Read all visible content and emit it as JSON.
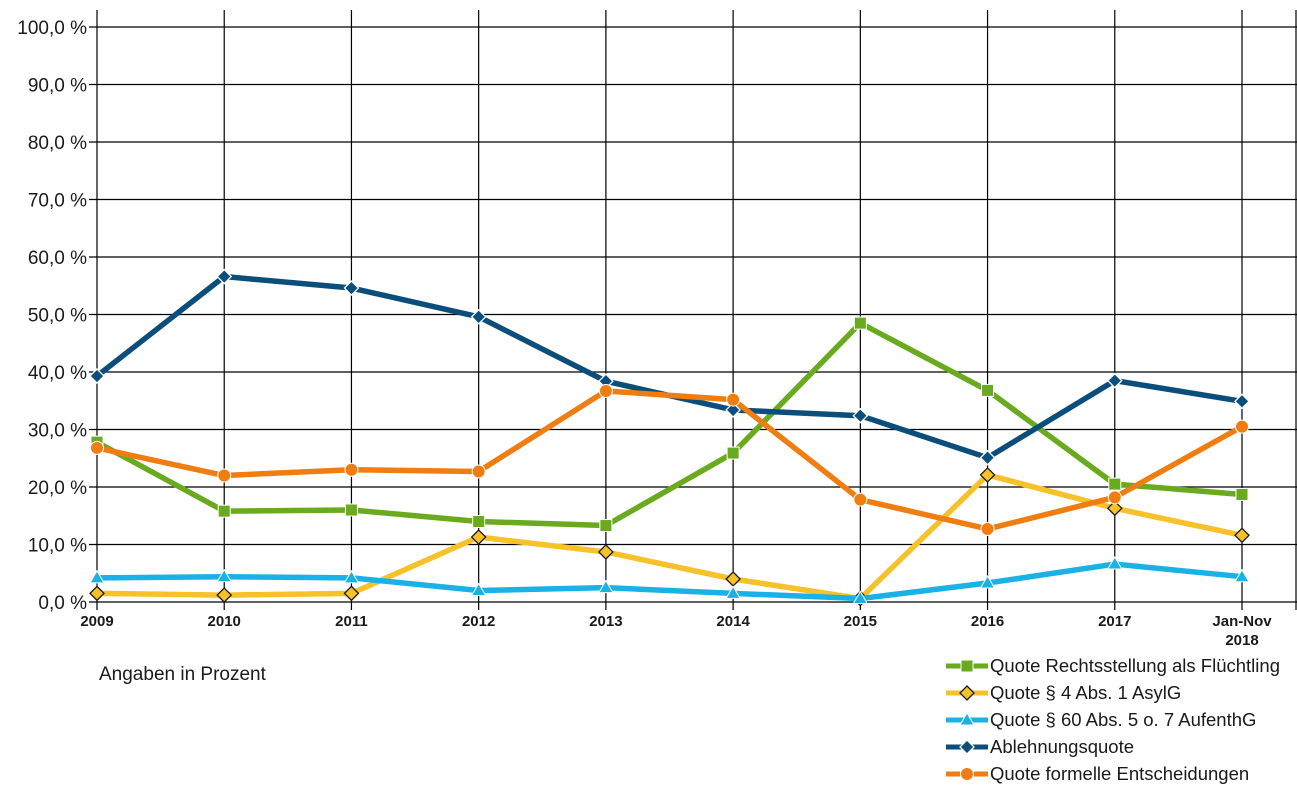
{
  "chart_data": {
    "type": "line",
    "categories": [
      "2009",
      "2010",
      "2011",
      "2012",
      "2013",
      "2014",
      "2015",
      "2016",
      "2017",
      "Jan-Nov 2018"
    ],
    "ylim": [
      0,
      100
    ],
    "yticks": [
      {
        "value": 0,
        "label": "0,0 %"
      },
      {
        "value": 10,
        "label": "10,0 %"
      },
      {
        "value": 20,
        "label": "20,0 %"
      },
      {
        "value": 30,
        "label": "30,0 %"
      },
      {
        "value": 40,
        "label": "40,0 %"
      },
      {
        "value": 50,
        "label": "50,0 %"
      },
      {
        "value": 60,
        "label": "60,0 %"
      },
      {
        "value": 70,
        "label": "70,0 %"
      },
      {
        "value": 80,
        "label": "80,0 %"
      },
      {
        "value": 90,
        "label": "90,0 %"
      },
      {
        "value": 100,
        "label": "100,0 %"
      }
    ],
    "grid": true,
    "legend_position": "bottom-right",
    "series": [
      {
        "name": "Quote Rechtsstellung als Flüchtling",
        "color": "#6aaa1e",
        "marker": "square",
        "values": [
          27.8,
          15.8,
          16.0,
          14.0,
          13.3,
          25.9,
          48.5,
          36.8,
          20.5,
          18.7
        ]
      },
      {
        "name": "Quote § 4 Abs. 1 AsylG",
        "color": "#f7c12a",
        "marker": "diamond",
        "values": [
          1.5,
          1.2,
          1.5,
          11.3,
          8.7,
          4.0,
          0.6,
          22.1,
          16.3,
          11.6
        ]
      },
      {
        "name": "Quote § 60 Abs. 5 o. 7 AufenthG",
        "color": "#19b1e6",
        "marker": "triangle",
        "values": [
          4.2,
          4.4,
          4.2,
          2.0,
          2.5,
          1.5,
          0.6,
          3.3,
          6.6,
          4.4
        ]
      },
      {
        "name": "Ablehnungsquote",
        "color": "#0b4e7c",
        "marker": "diamond",
        "values": [
          39.3,
          56.6,
          54.6,
          49.6,
          38.4,
          33.4,
          32.4,
          25.1,
          38.5,
          34.9
        ]
      },
      {
        "name": "Quote formelle Entscheidungen",
        "color": "#ef7d12",
        "marker": "circle",
        "values": [
          26.8,
          22.0,
          23.0,
          22.7,
          36.7,
          35.2,
          17.8,
          12.7,
          18.2,
          30.5
        ]
      }
    ],
    "annotation": "Angaben in Prozent"
  }
}
